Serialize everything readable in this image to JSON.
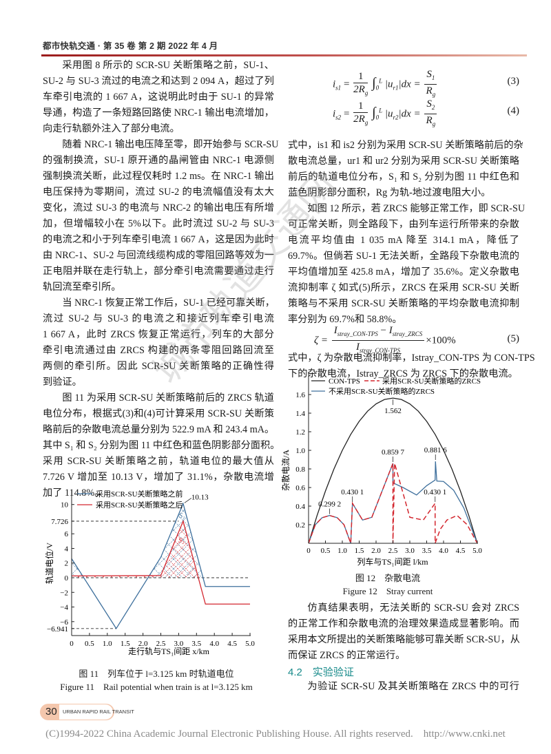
{
  "header": {
    "journal": "都市快轨交通 · 第 35 卷 第 2 期 2022 年 4 月"
  },
  "left_column": {
    "paragraphs": [
      {
        "lines": [
          "采用图 8 所示的 SCR-SU 关断策略之前，SU-1、",
          "SU-2 与 SU-3 流过的电流之和达到 2 094 A，超过了列",
          "车牵引电流的 1 667 A，这说明此时由于 SU-1 的异常",
          "导通，构造了一条短路回路使 NRC-1 输出电流增加，",
          "向走行轨额外注入了部分电流。"
        ]
      },
      {
        "lines": [
          "随着 NRC-1 输出电压降至零，即开始参与 SCR-SU",
          "的强制换流，SU-1 原开通的晶闸管由 NRC-1 电源侧",
          "强制换流关断，此过程仅耗时 1.2 ms。在 NRC-1 输出",
          "电压保持为零期间，流过 SU-2 的电流幅值没有太大",
          "变化，流过 SU-3 的电流与 NRC-2 的输出电压有所增",
          "加，但增幅较小在 5%以下。此时流过 SU-2 与 SU-3",
          "的电流之和小于列车牵引电流 1 667 A，这是因为此时",
          "由 NRC-1、SU-2 与回流线缆构成的零阻回路等效为一",
          "正电阻并联在走行轨上，部分牵引电流需要通过走行",
          "轨回流至牵引所。"
        ]
      },
      {
        "lines": [
          "当 NRC-1 恢复正常工作后，SU-1 已经可靠关断，",
          "流过 SU-2 与 SU-3 的电流之和接近列车牵引电流",
          "1 667 A，此时 ZRCS 恢复正常运行，列车的大部分",
          "牵引电流通过由 ZRCS 构建的两条零阻回路回流至",
          "两侧的牵引所。因此 SCR-SU 关断策略的正确性得",
          "到验证。"
        ]
      },
      {
        "lines": [
          "图 11 为采用 SCR-SU 关断策略前后的 ZRCS 轨道",
          "电位分布，根据式(3)和(4)可计算采用 SCR-SU 关断策",
          "略前后的杂散电流总量分别为 522.9 mA 和 243.4 mA。",
          "其中 S₁ 和 S₂ 分别为图 11 中红色和蓝色阴影部分面积。",
          "采用 SCR-SU 关断策略之前，轨道电位的最大值从",
          "7.726 V 增加至 10.13 V，增加了 31.1%，杂散电流增",
          "加了 114.8%。"
        ]
      }
    ]
  },
  "equations": {
    "eq3": {
      "lhs": "i",
      "lhs_sub": "s1",
      "num": "1",
      "den": "2R",
      "den_sub": "g",
      "integral": "∫",
      "upper": "L",
      "lower": "0",
      "integrand": "|u",
      "integrand_sub": "r1",
      "tail": "|dx =",
      "rnum": "S",
      "rnum_sub": "1",
      "rden": "R",
      "rden_sub": "g",
      "number": "(3)"
    },
    "eq4": {
      "lhs": "i",
      "lhs_sub": "s2",
      "num": "1",
      "den": "2R",
      "den_sub": "g",
      "integral": "∫",
      "upper": "L",
      "lower": "0",
      "integrand": "|u",
      "integrand_sub": "r2",
      "tail": "|dx =",
      "rnum": "S",
      "rnum_sub": "2",
      "rden": "R",
      "rden_sub": "g",
      "number": "(4)"
    },
    "eq5": {
      "lhs": "ζ =",
      "num_a": "I",
      "num_a_sub": "stray_CON-TPS",
      "minus": " − ",
      "num_b": "I",
      "num_b_sub": "stray_ZRCS",
      "den": "I",
      "den_sub": "stray_CON-TPS",
      "tail": "×100%",
      "number": "(5)"
    }
  },
  "right_column": {
    "block1": {
      "lines": [
        "式中，is1 和 is2 分别为采用 SCR-SU 关断策略前后的杂",
        "散电流总量，ur1 和 ur2 分别为采用 SCR-SU 关断策略",
        "前后的轨道电位分布，S₁ 和 S₂ 分别为图 11 中红色和",
        "蓝色阴影部分面积，Rg 为轨-地过渡电阻大小。"
      ]
    },
    "block2": {
      "lines": [
        "如图 12 所示，若 ZRCS 能够正常工作，即 SCR-SU",
        "可正常关断，则全路段下，由列车运行所带来的杂散",
        "电流平均值由 1 035 mA 降至 314.1 mA，降低了",
        "69.7%。但倘若 SU-1 无法关断，全路段下杂散电流的",
        "平均值增加至 425.8 mA，增加了 35.6%。定义杂散电",
        "流抑制率 ζ 如式(5)所示，ZRCS 在采用 SCR-SU 关断",
        "策略与不采用 SCR-SU 关断策略的平均杂散电流抑制",
        "率分别为 69.7%和 58.8%。"
      ]
    },
    "block3": {
      "lines": [
        "式中，ζ 为杂散电流抑制率，Istray_CON-TPS 为 CON-TPS",
        "下的杂散电流，Istray_ZRCS 为 ZRCS 下的杂散电流。"
      ]
    },
    "block4": {
      "lines": [
        "仿真结果表明，无法关断的 SCR-SU 会对 ZRCS",
        "的正常工作和杂散电流的治理效果造成显著影响。而",
        "采用本文所提出的关断策略能够可靠关断 SCR-SU，从",
        "而保证 ZRCS 的正常运行。"
      ]
    },
    "section_heading": "4.2　实验验证",
    "block5": {
      "lines": [
        "为验证 SCR-SU 及其关断策略在 ZRCS 中的可行"
      ]
    }
  },
  "figure11": {
    "caption_cn": "图 11　列车位于 l=3.125 km 时轨道电位",
    "caption_en": "Figure 11　Rail potential when train is at l=3.125 km"
  },
  "figure12": {
    "caption_cn": "图 12　杂散电流",
    "caption_en": "Figure 12　Stray current"
  },
  "chart_data": [
    {
      "type": "line",
      "xlabel": "走行轨与TS₁间距 x/km",
      "ylabel": "轨道电位/V",
      "xlim": [
        0,
        5.0
      ],
      "ylim": [
        -7.9,
        12
      ],
      "x_ticks": [
        "0",
        "0.5",
        "1.0",
        "1.5",
        "2.0",
        "2.5",
        "3.0",
        "3.5",
        "4.0",
        "4.5",
        "5.0"
      ],
      "y_ticks": [
        10,
        7.726,
        6,
        4,
        2,
        0,
        -2,
        -4,
        -6,
        -6.941
      ],
      "y_tick_labels": [
        "10",
        "7.726",
        "6",
        "4",
        "2",
        "0",
        "−2",
        "−4",
        "−6",
        "−6.941"
      ],
      "reference_lines": [
        7.726,
        0,
        -6.941
      ],
      "legend_position": "top-left",
      "series": [
        {
          "name": "采用SCR-SU关断策略之前",
          "color": "#3d6f9c",
          "style": "solid",
          "x": [
            0,
            1.25,
            2.5,
            3.125,
            3.75,
            5.0
          ],
          "y": [
            2.6,
            -6.941,
            2.8,
            10.13,
            -1.2,
            -1.2
          ]
        },
        {
          "name": "采用SCR-SU关断策略之后",
          "color": "#d3262e",
          "style": "solid",
          "x": [
            0,
            2.5,
            3.125,
            3.75,
            5.0
          ],
          "y": [
            0.25,
            0.3,
            7.726,
            -3.6,
            -3.6
          ]
        }
      ],
      "area_labels": [
        "S₁",
        "S₂"
      ],
      "annotations": [
        {
          "text": "10.13",
          "x": 3.125,
          "y": 10.13
        }
      ]
    },
    {
      "type": "line",
      "xlabel": "列车与TS₁间距 l/km",
      "ylabel": "杂散电流/A",
      "xlim": [
        0,
        5.0
      ],
      "ylim": [
        0,
        1.7
      ],
      "x_ticks": [
        "0",
        "0.5",
        "1.0",
        "1.5",
        "2.0",
        "2.5",
        "3.0",
        "3.5",
        "4.0",
        "4.5",
        "5.0"
      ],
      "y_ticks": [
        0.2,
        0.4,
        0.6,
        0.8,
        1.0,
        1.2,
        1.4,
        1.6
      ],
      "y_tick_labels": [
        "0.2",
        "0.4",
        "0.6",
        "0.8",
        "1.0",
        "1.2",
        "1.4",
        "1.6"
      ],
      "legend_position": "top",
      "series": [
        {
          "name": "CON-TPS",
          "color": "#222222",
          "style": "solid",
          "x": [
            0,
            0.25,
            0.5,
            0.75,
            1.0,
            1.25,
            1.5,
            1.75,
            2.0,
            2.25,
            2.5,
            2.75,
            3.0,
            3.25,
            3.5,
            3.75,
            4.0,
            4.25,
            4.5,
            4.75,
            5.0
          ],
          "y": [
            0,
            0.297,
            0.562,
            0.797,
            1.0,
            1.172,
            1.312,
            1.422,
            1.5,
            1.547,
            1.562,
            1.547,
            1.5,
            1.422,
            1.312,
            1.172,
            1.0,
            0.797,
            0.562,
            0.297,
            0
          ]
        },
        {
          "name": "采用SCR-SU关断策略的ZRCS",
          "color": "#d3262e",
          "style": "dashed",
          "x": [
            0,
            0.2,
            0.4,
            0.625,
            0.85,
            1.05,
            1.25,
            1.3,
            1.6,
            1.875,
            2.5,
            2.5,
            2.55,
            3.0,
            3.4,
            3.75,
            3.75,
            3.9,
            4.1,
            4.4,
            4.7,
            5.0
          ],
          "y": [
            0,
            0.2,
            0.275,
            0.2992,
            0.275,
            0.2,
            0,
            0.4301,
            0.25,
            0.28,
            0.8597,
            0,
            0.86,
            0.28,
            0.25,
            0.4301,
            0,
            0.15,
            0.25,
            0.3,
            0.2,
            0
          ]
        },
        {
          "name": "不采用SCR-SU关断策略的ZRCS",
          "color": "#3d6f9c",
          "style": "solid",
          "x": [
            0,
            0.2,
            0.4,
            0.625,
            0.85,
            1.05,
            1.25,
            1.3,
            1.6,
            1.875,
            2.5,
            2.5,
            2.8,
            3.2,
            3.5,
            3.75,
            3.76,
            3.8,
            4.0,
            4.3,
            4.6,
            5.0
          ],
          "y": [
            0,
            0.2,
            0.275,
            0.2992,
            0.275,
            0.2,
            0,
            0.4301,
            0.25,
            0.28,
            0.8597,
            0.65,
            0.6,
            0.52,
            0.62,
            0.68,
            0.8816,
            0.67,
            0.665,
            0.57,
            0.38,
            0
          ]
        }
      ],
      "annotations": [
        {
          "text": "1.562",
          "x": 2.5,
          "y": 1.562
        },
        {
          "text": "0.299 2",
          "x": 0.625,
          "y": 0.2992
        },
        {
          "text": "0.430 1",
          "x": 1.3,
          "y": 0.4301
        },
        {
          "text": "0.859 7",
          "x": 2.5,
          "y": 0.8597
        },
        {
          "text": "0.881 6",
          "x": 3.76,
          "y": 0.8816
        },
        {
          "text": "0.430 1",
          "x": 3.75,
          "y": 0.4301
        }
      ]
    }
  ],
  "footer": {
    "page": "30",
    "journal_en": "URBAN RAPID RAIL TRANSIT",
    "copyright": "(C)1994-2022 China Academic Journal Electronic Publishing House. All rights reserved.　http://www.cnki.net"
  },
  "watermark": "城市轨道交通网"
}
